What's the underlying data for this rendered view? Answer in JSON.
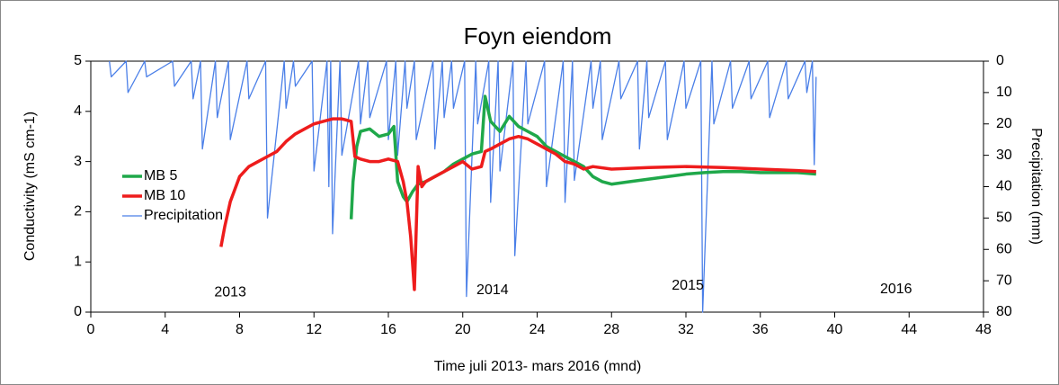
{
  "chart_data": {
    "type": "line",
    "title": "Foyn eiendom",
    "xlabel": "Time juli  2013- mars  2016 (mnd)",
    "ylabel": "Conductivity  (mS cm-1)",
    "y2label": "Precipitation (mm)",
    "xlim": [
      0,
      48
    ],
    "xticks": [
      0,
      4,
      8,
      12,
      16,
      20,
      24,
      28,
      32,
      36,
      40,
      44,
      48
    ],
    "ylim": [
      0,
      5
    ],
    "yticks": [
      0,
      1,
      2,
      3,
      4,
      5
    ],
    "y2lim": [
      0,
      80
    ],
    "y2ticks": [
      0,
      10,
      20,
      30,
      40,
      50,
      60,
      70,
      80
    ],
    "y2_inverted": true,
    "legend": "left",
    "annotations": [
      {
        "text": "2013",
        "x": 7.5,
        "y": 0.39
      },
      {
        "text": "2014",
        "x": 21.6,
        "y": 0.43
      },
      {
        "text": "2015",
        "x": 32.1,
        "y": 0.52
      },
      {
        "text": "2016",
        "x": 43.3,
        "y": 0.45
      }
    ],
    "series": [
      {
        "name": "MB 5",
        "color": "#1fa84a",
        "width": 3.5,
        "x": [
          14.0,
          14.1,
          14.3,
          14.5,
          15,
          15.5,
          16,
          16.3,
          16.5,
          16.8,
          17.0,
          17.3,
          17.6,
          18,
          18.5,
          19,
          19.5,
          20,
          20.5,
          21,
          21.2,
          21.5,
          22,
          22.5,
          23,
          23.5,
          24,
          24.5,
          25,
          25.5,
          26,
          26.5,
          27,
          27.5,
          28,
          29,
          30,
          31,
          32,
          33,
          34,
          35,
          36,
          37,
          38,
          39
        ],
        "values": [
          1.85,
          2.6,
          3.3,
          3.6,
          3.65,
          3.5,
          3.55,
          3.7,
          2.6,
          2.3,
          2.2,
          2.4,
          2.55,
          2.6,
          2.7,
          2.8,
          2.95,
          3.05,
          3.15,
          3.2,
          4.3,
          3.8,
          3.6,
          3.9,
          3.7,
          3.6,
          3.5,
          3.3,
          3.2,
          3.1,
          3.0,
          2.9,
          2.7,
          2.6,
          2.55,
          2.6,
          2.65,
          2.7,
          2.75,
          2.78,
          2.8,
          2.8,
          2.78,
          2.78,
          2.78,
          2.75
        ]
      },
      {
        "name": "MB 10",
        "color": "#ee1c1c",
        "width": 3.5,
        "x": [
          7.0,
          7.2,
          7.5,
          8.0,
          8.5,
          9,
          9.5,
          10,
          10.5,
          11,
          11.5,
          12,
          12.5,
          13,
          13.5,
          14,
          14.2,
          14.5,
          15,
          15.5,
          16,
          16.5,
          16.8,
          17,
          17.2,
          17.4,
          17.6,
          17.8,
          18,
          18.5,
          19,
          19.5,
          20,
          20.5,
          21,
          21.2,
          21.5,
          22,
          22.5,
          23,
          23.5,
          24,
          24.5,
          25,
          25.5,
          26,
          26.5,
          27,
          28,
          30,
          32,
          34,
          36,
          38,
          39
        ],
        "values": [
          1.3,
          1.7,
          2.2,
          2.7,
          2.9,
          3.0,
          3.1,
          3.2,
          3.4,
          3.55,
          3.65,
          3.75,
          3.8,
          3.85,
          3.85,
          3.8,
          3.1,
          3.05,
          3.0,
          3.0,
          3.05,
          3.0,
          2.6,
          2.2,
          1.5,
          0.45,
          2.9,
          2.5,
          2.6,
          2.7,
          2.8,
          2.9,
          3.0,
          2.85,
          2.9,
          3.2,
          3.25,
          3.35,
          3.45,
          3.5,
          3.45,
          3.35,
          3.25,
          3.15,
          3.0,
          2.95,
          2.85,
          2.9,
          2.85,
          2.88,
          2.9,
          2.88,
          2.85,
          2.82,
          2.8
        ]
      },
      {
        "name": "Precipitation",
        "color": "#4a7fe8",
        "width": 1.3,
        "axis": "y2",
        "x": [
          1.0,
          1.1,
          1.9,
          2.0,
          2.9,
          3.0,
          4.4,
          4.5,
          5.4,
          5.5,
          5.9,
          6.0,
          6.7,
          6.8,
          7.4,
          7.5,
          8.4,
          8.5,
          9.4,
          9.5,
          10.4,
          10.5,
          10.9,
          11.0,
          11.9,
          12.0,
          12.7,
          12.8,
          12.9,
          13.0,
          13.4,
          13.5,
          14.4,
          14.5,
          14.9,
          15.0,
          15.9,
          16.0,
          16.4,
          16.5,
          16.9,
          17.0,
          17.4,
          17.5,
          18.4,
          18.5,
          18.9,
          19.0,
          19.4,
          19.5,
          20.1,
          20.2,
          20.7,
          20.8,
          21.4,
          21.5,
          21.9,
          22.0,
          22.7,
          22.8,
          23.4,
          23.5,
          24.4,
          24.5,
          25.4,
          25.5,
          25.9,
          26.0,
          26.9,
          27.0,
          27.4,
          27.5,
          28.4,
          28.5,
          29.4,
          29.5,
          29.9,
          30.0,
          30.9,
          31.0,
          31.9,
          32.0,
          32.8,
          32.9,
          33.4,
          33.5,
          34.4,
          34.5,
          35.4,
          35.5,
          36.4,
          36.5,
          37.4,
          37.5,
          38.4,
          38.5,
          38.8,
          38.9,
          39.0
        ],
        "values": [
          0,
          5,
          0,
          10,
          0,
          5,
          0,
          8,
          0,
          12,
          0,
          28,
          0,
          18,
          0,
          25,
          0,
          12,
          0,
          50,
          0,
          15,
          0,
          8,
          0,
          35,
          0,
          40,
          0,
          55,
          0,
          30,
          0,
          20,
          0,
          18,
          0,
          25,
          0,
          30,
          0,
          15,
          0,
          25,
          0,
          28,
          0,
          18,
          0,
          15,
          0,
          75,
          0,
          20,
          0,
          45,
          0,
          35,
          0,
          62,
          0,
          20,
          0,
          40,
          0,
          45,
          0,
          38,
          0,
          15,
          0,
          25,
          0,
          12,
          0,
          28,
          0,
          18,
          0,
          25,
          0,
          15,
          0,
          80,
          0,
          20,
          0,
          15,
          0,
          12,
          0,
          18,
          0,
          12,
          0,
          10,
          0,
          33,
          5
        ]
      }
    ]
  }
}
